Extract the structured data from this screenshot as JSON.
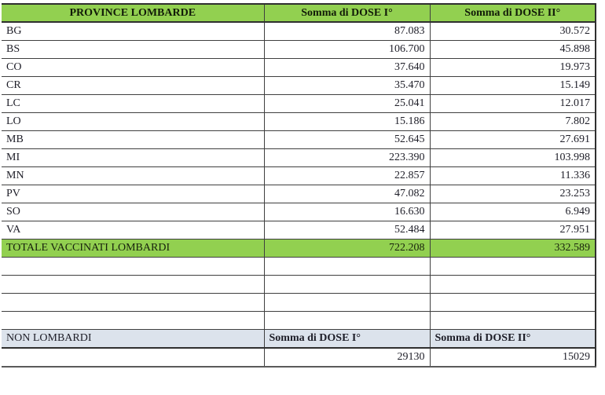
{
  "table": {
    "header": {
      "province_label": "PROVINCE LOMBARDE",
      "dose1_label": "Somma di DOSE I°",
      "dose2_label": "Somma di DOSE II°"
    },
    "rows": [
      {
        "province": "BG",
        "dose1": "87.083",
        "dose2": "30.572"
      },
      {
        "province": "BS",
        "dose1": "106.700",
        "dose2": "45.898"
      },
      {
        "province": "CO",
        "dose1": "37.640",
        "dose2": "19.973"
      },
      {
        "province": "CR",
        "dose1": "35.470",
        "dose2": "15.149"
      },
      {
        "province": "LC",
        "dose1": "25.041",
        "dose2": "12.017"
      },
      {
        "province": "LO",
        "dose1": "15.186",
        "dose2": "7.802"
      },
      {
        "province": "MB",
        "dose1": "52.645",
        "dose2": "27.691"
      },
      {
        "province": "MI",
        "dose1": "223.390",
        "dose2": "103.998"
      },
      {
        "province": "MN",
        "dose1": "22.857",
        "dose2": "11.336"
      },
      {
        "province": "PV",
        "dose1": "47.082",
        "dose2": "23.253"
      },
      {
        "province": "SO",
        "dose1": "16.630",
        "dose2": "6.949"
      },
      {
        "province": "VA",
        "dose1": "52.484",
        "dose2": "27.951"
      }
    ],
    "total": {
      "label": "TOTALE VACCINATI LOMBARDI",
      "dose1": "722.208",
      "dose2": "332.589"
    },
    "spacer_row_count": 4,
    "non_lombardi": {
      "label": "NON LOMBARDI",
      "dose1_label": "Somma di DOSE I°",
      "dose2_label": "Somma di DOSE II°",
      "dose1": "29130",
      "dose2": "15029"
    },
    "colors": {
      "header_green": "#92d050",
      "total_row_green": "#92d050",
      "non_lombardi_bg": "#dce3ec",
      "border": "#3f3f3f"
    }
  }
}
